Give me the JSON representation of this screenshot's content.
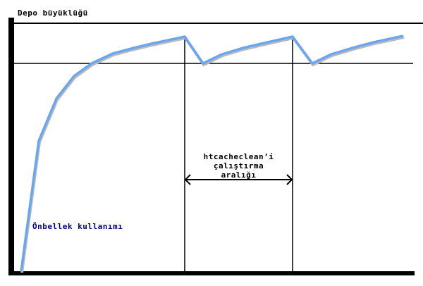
{
  "diagram": {
    "y_axis_label": "Depo büyüklüğü",
    "curve_label": "Önbellek kullanımı",
    "interval_label_lines": [
      "htcacheclean’i",
      "çalıştırma",
      "aralığı"
    ],
    "curve_color": "#6aa6f0"
  }
}
